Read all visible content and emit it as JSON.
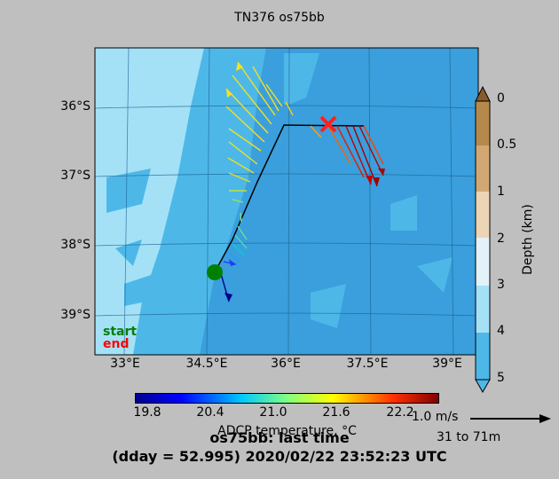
{
  "title": "TN376 os75bb",
  "map": {
    "lat_labels": [
      "36°S",
      "37°S",
      "38°S",
      "39°S"
    ],
    "lon_labels": [
      "33°E",
      "34.5°E",
      "36°E",
      "37.5°E",
      "39°E"
    ],
    "start_label": "start",
    "end_label": "end",
    "colors": {
      "start": "#008000",
      "end": "#ff0000",
      "track": "#000000"
    }
  },
  "depth_colorbar": {
    "label": "Depth (km)",
    "ticks": [
      "0",
      "0.5",
      "1",
      "2",
      "3",
      "4",
      "5"
    ],
    "colors": [
      "#8b5a2b",
      "#b5894c",
      "#d1a874",
      "#ecd5b5",
      "#e3f1f8",
      "#a4e1f7",
      "#4db8e8"
    ]
  },
  "temp_colorbar": {
    "label": "ADCP temperature, °C",
    "ticks": [
      "19.8",
      "20.4",
      "21.0",
      "21.6",
      "22.2"
    ]
  },
  "scale": {
    "speed": "1.0 m/s",
    "depth_range": "31 to 71m"
  },
  "footer": {
    "line1": "os75bb: last time",
    "line2": "(dday = 52.995) 2020/02/22 23:52:23 UTC"
  }
}
